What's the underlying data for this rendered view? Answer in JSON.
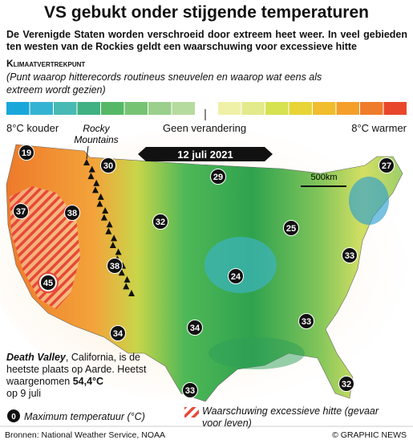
{
  "title": "VS gebukt onder stijgende temperaturen",
  "subtitle": "De Verenigde Staten worden verschroeid door extreem heet weer. In veel gebieden ten westen van de Rockies geldt een waarschuwing voor excessieve hitte",
  "legend": {
    "heading": "Klimaatvertrekpunt",
    "description": "(Punt waarop hitterecords routineus sneuvelen en waarop wat eens als extreem wordt gezien)",
    "left_label": "8°C kouder",
    "center_label": "Geen verandering",
    "right_label": "8°C warmer",
    "colors": [
      "#19a7da",
      "#35b3d2",
      "#49b9b3",
      "#3fb183",
      "#56b866",
      "#77c374",
      "#9bd08c",
      "#b6db9e",
      "#eff1a8",
      "#e3ea8b",
      "#d6e250",
      "#e7d537",
      "#f1bd2d",
      "#f49f2a",
      "#ef7c2a",
      "#e8472a"
    ]
  },
  "map": {
    "date": "12 juli 2021",
    "mountains": [
      "Rocky",
      "Mountains"
    ],
    "scale": "500km",
    "temperatures": [
      19,
      30,
      29,
      27,
      37,
      38,
      32,
      25,
      33,
      38,
      24,
      45,
      34,
      34,
      33,
      33,
      32
    ]
  },
  "note": {
    "place": "Death Valley",
    "text": ", California, is de heetste plaats op Aarde. Heetst waargenomen ",
    "record": "54,4°C",
    "date": "op 9 juli"
  },
  "key": {
    "marker": "0",
    "label": "Maximum temperatuur (°C)",
    "warning": "Waarschuwing excessieve hitte (gevaar voor leven)"
  },
  "footer": {
    "source": "Bronnen: National Weather Service, NOAA",
    "credit": "© GRAPHIC NEWS"
  }
}
